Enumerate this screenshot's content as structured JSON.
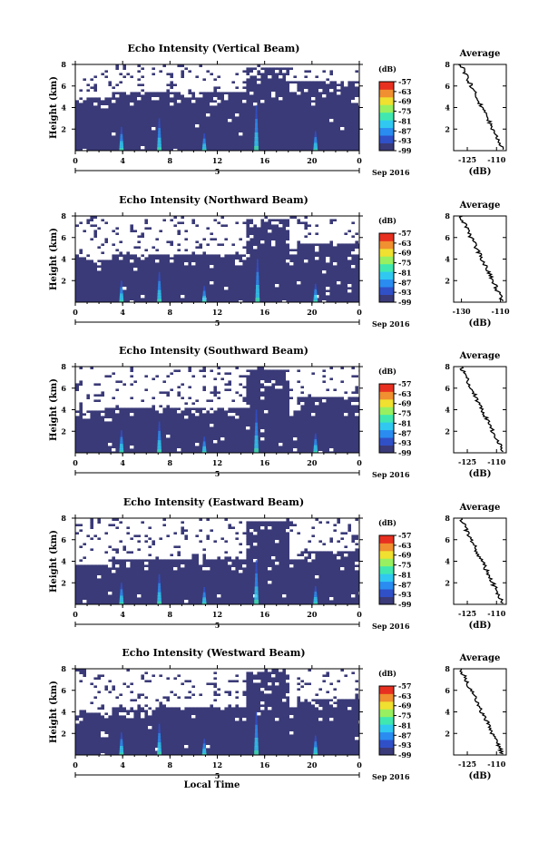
{
  "chart_data": [
    {
      "type": "heatmap",
      "title": "Echo Intensity (Vertical Beam)",
      "ylabel": "Height (km)",
      "xticks": [
        "0",
        "4",
        "8",
        "12",
        "16",
        "20",
        "0"
      ],
      "yticks": [
        "8",
        "6",
        "4",
        "2"
      ],
      "xlim_hours": [
        0,
        24
      ],
      "ylim_km": [
        0,
        8
      ],
      "date_label": "5",
      "date_suffix": "Sep 2016",
      "colorbar": {
        "unit": "(dB)",
        "ticks": [
          "-57",
          "-63",
          "-69",
          "-75",
          "-81",
          "-87",
          "-93",
          "-99"
        ],
        "range": [
          -99,
          -57
        ]
      },
      "profile": {
        "title": "Average",
        "xlabel": "(dB)",
        "xticks": [
          "-125",
          "-110"
        ],
        "xlim": [
          -132,
          -105
        ],
        "ylim": [
          0,
          8
        ]
      },
      "white_threshold_km": 5.5,
      "dense_top_km": 3.6,
      "plumes": [
        {
          "t": 3.9,
          "h": 2.2
        },
        {
          "t": 7.1,
          "h": 3.0
        },
        {
          "t": 10.9,
          "h": 1.6
        },
        {
          "t": 15.3,
          "h": 4.2
        },
        {
          "t": 20.3,
          "h": 1.8
        }
      ]
    },
    {
      "type": "heatmap",
      "title": "Echo Intensity (Northward Beam)",
      "ylabel": "Height (km)",
      "xticks": [
        "0",
        "4",
        "8",
        "12",
        "16",
        "20",
        "0"
      ],
      "yticks": [
        "8",
        "6",
        "4",
        "2"
      ],
      "xlim_hours": [
        0,
        24
      ],
      "ylim_km": [
        0,
        8
      ],
      "date_label": "5",
      "date_suffix": "Sep 2016",
      "colorbar": {
        "unit": "(dB)",
        "ticks": [
          "-57",
          "-63",
          "-69",
          "-75",
          "-81",
          "-87",
          "-93",
          "-99"
        ],
        "range": [
          -99,
          -57
        ]
      },
      "profile": {
        "title": "Average",
        "xlabel": "(dB)",
        "xticks": [
          "-130",
          "-110"
        ],
        "xlim": [
          -134,
          -107
        ],
        "ylim": [
          0,
          8
        ]
      },
      "white_threshold_km": 4.5,
      "dense_top_km": 2.6,
      "plumes": [
        {
          "t": 3.9,
          "h": 2.0
        },
        {
          "t": 7.1,
          "h": 2.8
        },
        {
          "t": 10.9,
          "h": 1.5
        },
        {
          "t": 15.4,
          "h": 4.0
        },
        {
          "t": 20.3,
          "h": 1.7
        }
      ]
    },
    {
      "type": "heatmap",
      "title": "Echo Intensity (Southward Beam)",
      "ylabel": "Height (km)",
      "xticks": [
        "0",
        "4",
        "8",
        "12",
        "16",
        "20",
        "0"
      ],
      "yticks": [
        "8",
        "6",
        "4",
        "2"
      ],
      "xlim_hours": [
        0,
        24
      ],
      "ylim_km": [
        0,
        8
      ],
      "date_label": "5",
      "date_suffix": "Sep 2016",
      "colorbar": {
        "unit": "(dB)",
        "ticks": [
          "-57",
          "-63",
          "-69",
          "-75",
          "-81",
          "-87",
          "-93",
          "-99"
        ],
        "range": [
          -99,
          -57
        ]
      },
      "profile": {
        "title": "Average",
        "xlabel": "(dB)",
        "xticks": [
          "-125",
          "-110"
        ],
        "xlim": [
          -132,
          -105
        ],
        "ylim": [
          0,
          8
        ]
      },
      "white_threshold_km": 4.3,
      "dense_top_km": 2.8,
      "plumes": [
        {
          "t": 3.9,
          "h": 2.1
        },
        {
          "t": 7.1,
          "h": 2.9
        },
        {
          "t": 10.9,
          "h": 1.5
        },
        {
          "t": 15.3,
          "h": 4.0
        },
        {
          "t": 20.3,
          "h": 1.8
        }
      ]
    },
    {
      "type": "heatmap",
      "title": "Echo Intensity (Eastward Beam)",
      "ylabel": "Height (km)",
      "xticks": [
        "0",
        "4",
        "8",
        "12",
        "16",
        "20",
        "0"
      ],
      "yticks": [
        "8",
        "6",
        "4",
        "2"
      ],
      "xlim_hours": [
        0,
        24
      ],
      "ylim_km": [
        0,
        8
      ],
      "date_label": "5",
      "date_suffix": "Sep 2016",
      "colorbar": {
        "unit": "(dB)",
        "ticks": [
          "-57",
          "-63",
          "-69",
          "-75",
          "-81",
          "-87",
          "-93",
          "-99"
        ],
        "range": [
          -99,
          -57
        ]
      },
      "profile": {
        "title": "Average",
        "xlabel": "(dB)",
        "xticks": [
          "-125",
          "-110"
        ],
        "xlim": [
          -132,
          -105
        ],
        "ylim": [
          0,
          8
        ]
      },
      "white_threshold_km": 4.2,
      "dense_top_km": 2.5,
      "plumes": [
        {
          "t": 3.9,
          "h": 2.0
        },
        {
          "t": 7.1,
          "h": 2.8
        },
        {
          "t": 10.9,
          "h": 1.6
        },
        {
          "t": 15.3,
          "h": 4.1
        },
        {
          "t": 20.3,
          "h": 1.7
        }
      ]
    },
    {
      "type": "heatmap",
      "title": "Echo Intensity (Westward Beam)",
      "ylabel": "Height (km)",
      "xlabel": "Local Time",
      "xticks": [
        "0",
        "4",
        "8",
        "12",
        "16",
        "20",
        "0"
      ],
      "yticks": [
        "8",
        "6",
        "4",
        "2"
      ],
      "xlim_hours": [
        0,
        24
      ],
      "ylim_km": [
        0,
        8
      ],
      "date_label": "5",
      "date_suffix": "Sep 2016",
      "colorbar": {
        "unit": "(dB)",
        "ticks": [
          "-57",
          "-63",
          "-69",
          "-75",
          "-81",
          "-87",
          "-93",
          "-99"
        ],
        "range": [
          -99,
          -57
        ]
      },
      "profile": {
        "title": "Average",
        "xlabel": "(dB)",
        "xticks": [
          "-125",
          "-110"
        ],
        "xlim": [
          -132,
          -105
        ],
        "ylim": [
          0,
          8
        ]
      },
      "white_threshold_km": 4.4,
      "dense_top_km": 2.7,
      "plumes": [
        {
          "t": 3.9,
          "h": 2.1
        },
        {
          "t": 7.1,
          "h": 2.9
        },
        {
          "t": 10.9,
          "h": 1.5
        },
        {
          "t": 15.3,
          "h": 4.0
        },
        {
          "t": 20.3,
          "h": 1.8
        }
      ]
    }
  ],
  "colors": {
    "background_dark": "#3a3a78",
    "colormap": [
      "#3a3a78",
      "#3050c8",
      "#2a8cf0",
      "#30c8f0",
      "#40e8b0",
      "#98f060",
      "#f0e030",
      "#f09030",
      "#e83020"
    ]
  }
}
